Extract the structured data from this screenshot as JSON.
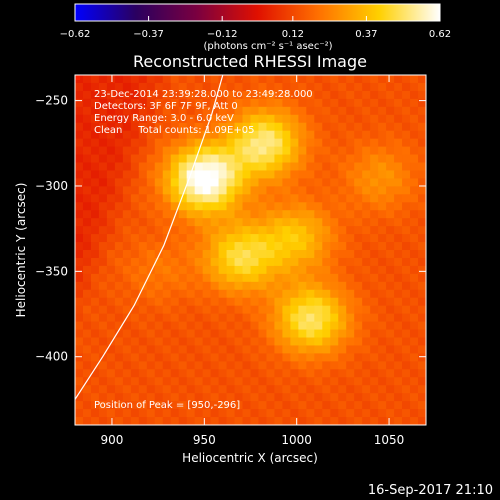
{
  "chart_data": {
    "type": "heatmap",
    "title": "Reconstructed RHESSI Image",
    "xlabel": "Heliocentric X (arcsec)",
    "ylabel": "Heliocentric Y (arcsec)",
    "xlim": [
      880,
      1070
    ],
    "ylim": [
      -440,
      -235
    ],
    "x_ticks": [
      900,
      950,
      1000,
      1050
    ],
    "x_tick_labels": [
      "900",
      "950",
      "1000",
      "1050"
    ],
    "y_ticks": [
      -250,
      -300,
      -350,
      -400
    ],
    "y_tick_labels": [
      "−250",
      "−300",
      "−350",
      "−400"
    ],
    "colorbar": {
      "range": [
        -0.62,
        0.62
      ],
      "ticks": [
        -0.62,
        -0.37,
        -0.12,
        0.12,
        0.37,
        0.62
      ],
      "tick_labels": [
        "−0.62",
        "−0.37",
        "−0.12",
        "0.12",
        "0.37",
        "0.62"
      ],
      "unit_label": "(photons cm⁻² s⁻¹ asec⁻²)",
      "colormap": [
        "#0000ff",
        "#2a0060",
        "#7a0040",
        "#e01000",
        "#ff7000",
        "#ffd000",
        "#ffffff"
      ]
    },
    "annotations": [
      "23-Dec-2014 23:39:28.000 to 23:49:28.000",
      "Detectors: 3F 6F 7F 9F, Att 0",
      "Energy Range: 3.0 - 6.0 keV",
      "Clean     Total counts: 1.09E+05",
      "Position of Peak = [950,-296]"
    ],
    "peak": [
      950,
      -296
    ],
    "sources": [
      {
        "x": 950,
        "y": -296,
        "value": 0.62
      },
      {
        "x": 983,
        "y": -275,
        "value": 0.48
      },
      {
        "x": 1008,
        "y": -378,
        "value": 0.46
      },
      {
        "x": 970,
        "y": -342,
        "value": 0.42
      },
      {
        "x": 1000,
        "y": -330,
        "value": 0.34
      },
      {
        "x": 1045,
        "y": -295,
        "value": 0.24
      },
      {
        "x": 925,
        "y": -350,
        "value": 0.18
      }
    ],
    "limb": [
      [
        880,
        -425
      ],
      [
        895,
        -400
      ],
      [
        912,
        -370
      ],
      [
        928,
        -335
      ],
      [
        942,
        -295
      ],
      [
        954,
        -258
      ],
      [
        960,
        -235
      ]
    ]
  },
  "footer": {
    "date": "16-Sep-2017 21:10"
  }
}
